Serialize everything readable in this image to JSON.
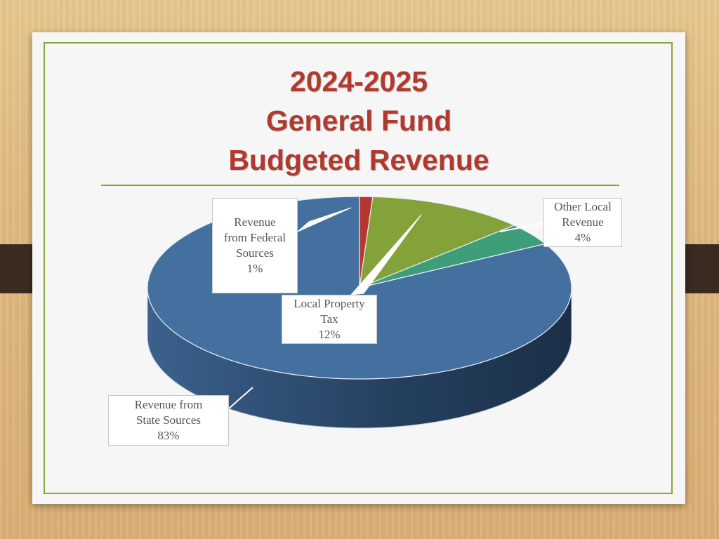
{
  "slide": {
    "title_lines": [
      "2024-2025",
      "General Fund",
      "Budgeted Revenue"
    ]
  },
  "colors": {
    "title": "#b03a2e",
    "frame": "#8aa53a",
    "state": "#44709f",
    "federal": "#b5372f",
    "property": "#84a23a",
    "other_local": "#3f9e7a"
  },
  "chart_data": {
    "type": "pie",
    "title": "",
    "slices": [
      {
        "name_lines": [
          "Revenue from",
          "State Sources"
        ],
        "value_label": "83%",
        "value": 83,
        "color": "#44709f"
      },
      {
        "name_lines": [
          "Revenue",
          "from Federal",
          "Sources"
        ],
        "value_label": "1%",
        "value": 1,
        "color": "#b5372f"
      },
      {
        "name_lines": [
          "Local Property",
          "Tax"
        ],
        "value_label": "12%",
        "value": 12,
        "color": "#84a23a"
      },
      {
        "name_lines": [
          "Other Local",
          "Revenue"
        ],
        "value_label": "4%",
        "value": 4,
        "color": "#3f9e7a"
      }
    ]
  }
}
